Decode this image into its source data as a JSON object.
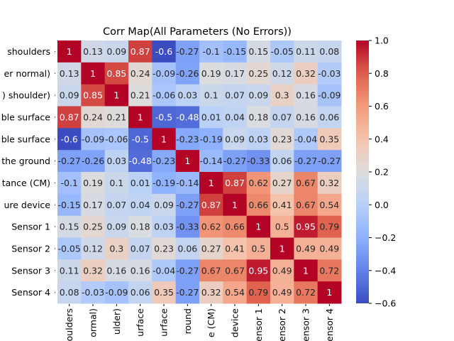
{
  "chart_data": {
    "type": "heatmap",
    "title": "Corr Map(All Parameters (No Errors))",
    "row_labels": [
      "shoulders",
      "er normal)",
      ") shoulder)",
      "ble surface",
      "ble surface",
      "the ground",
      "tance (CM)",
      "ure device",
      "Sensor 1",
      "Sensor 2",
      "Sensor 3",
      "Sensor 4"
    ],
    "col_labels": [
      "houlders",
      "ormal)",
      "ulder)",
      "urface",
      "urface",
      "round",
      "e (CM)",
      "device",
      "Sensor 1",
      "Sensor 2",
      "Sensor 3",
      "Sensor 4"
    ],
    "values": [
      [
        1,
        0.13,
        0.09,
        0.87,
        -0.6,
        -0.27,
        -0.1,
        -0.15,
        0.15,
        -0.05,
        0.11,
        0.08
      ],
      [
        0.13,
        1,
        0.85,
        0.24,
        -0.09,
        -0.26,
        0.19,
        0.17,
        0.25,
        0.12,
        0.32,
        -0.03
      ],
      [
        0.09,
        0.85,
        1,
        0.21,
        -0.06,
        0.03,
        0.1,
        0.07,
        0.09,
        0.3,
        0.16,
        -0.09
      ],
      [
        0.87,
        0.24,
        0.21,
        1,
        -0.5,
        -0.48,
        0.01,
        0.04,
        0.18,
        0.07,
        0.16,
        0.06
      ],
      [
        -0.6,
        -0.09,
        -0.06,
        -0.5,
        1,
        -0.23,
        -0.19,
        0.09,
        0.03,
        0.23,
        -0.04,
        0.35
      ],
      [
        -0.27,
        -0.26,
        0.03,
        -0.48,
        -0.23,
        1,
        -0.14,
        -0.27,
        -0.33,
        0.06,
        -0.27,
        -0.27
      ],
      [
        -0.1,
        0.19,
        0.1,
        0.01,
        -0.19,
        -0.14,
        1,
        0.87,
        0.62,
        0.27,
        0.67,
        0.32
      ],
      [
        -0.15,
        0.17,
        0.07,
        0.04,
        0.09,
        -0.27,
        0.87,
        1,
        0.66,
        0.41,
        0.67,
        0.54
      ],
      [
        0.15,
        0.25,
        0.09,
        0.18,
        0.03,
        -0.33,
        0.62,
        0.66,
        1,
        0.5,
        0.95,
        0.79
      ],
      [
        -0.05,
        0.12,
        0.3,
        0.07,
        0.23,
        0.06,
        0.27,
        0.41,
        0.5,
        1,
        0.49,
        0.49
      ],
      [
        0.11,
        0.32,
        0.16,
        0.16,
        -0.04,
        -0.27,
        0.67,
        0.67,
        0.95,
        0.49,
        1,
        0.72
      ],
      [
        0.08,
        -0.03,
        -0.09,
        0.06,
        0.35,
        -0.27,
        0.32,
        0.54,
        0.79,
        0.49,
        0.72,
        1
      ]
    ],
    "colormap": "coolwarm",
    "vmin": -0.6,
    "vmax": 1.0,
    "colorbar_ticks": [
      "1.0",
      "0.8",
      "0.6",
      "0.4",
      "0.2",
      "0.0",
      "−0.2",
      "−0.4",
      "−0.6"
    ],
    "grid": false,
    "legend": "colorbar-right"
  }
}
